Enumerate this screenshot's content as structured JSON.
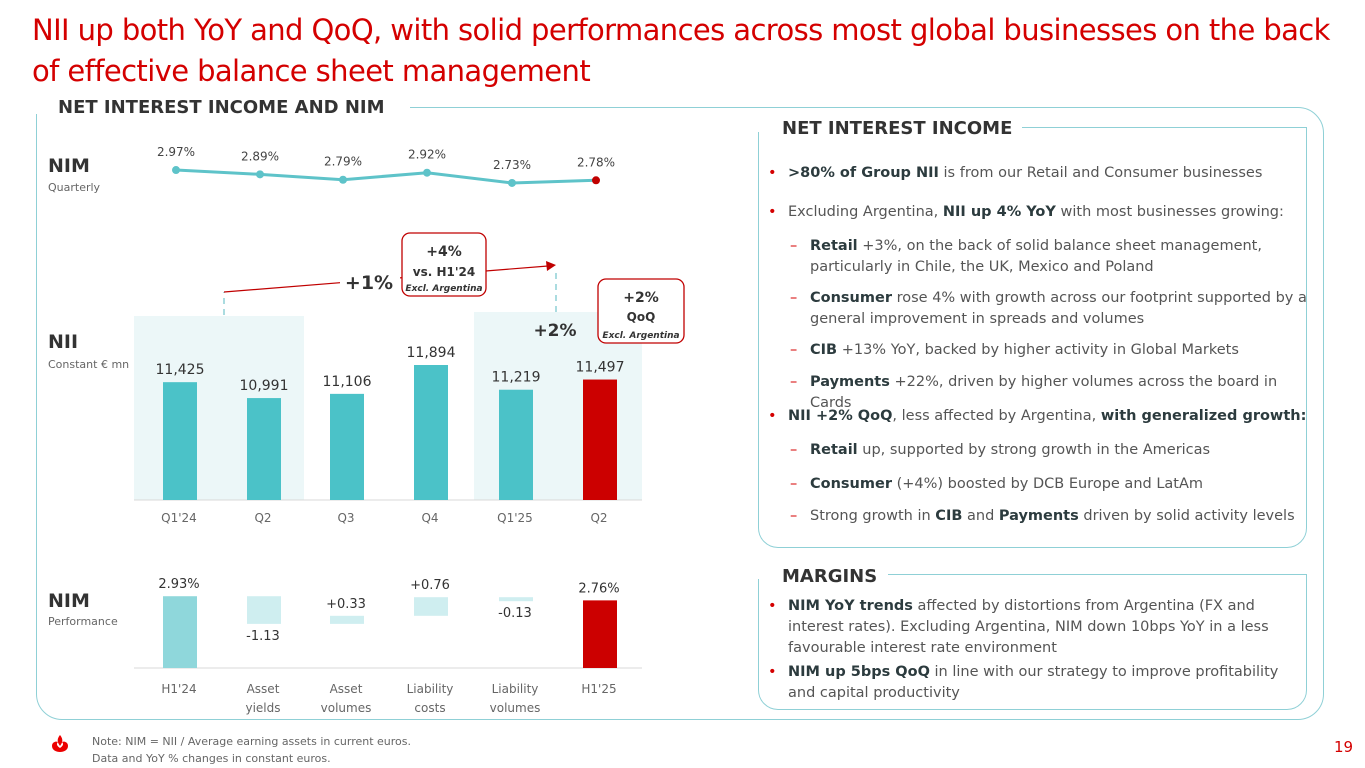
{
  "title": "NII up both YoY and QoQ, with solid performances across most global businesses on the back of effective balance sheet management",
  "section_main": "NET INTEREST INCOME AND NIM",
  "section_nii": "NET INTEREST INCOME",
  "section_margins": "MARGINS",
  "nim_label": "NIM",
  "nim_sub": "Quarterly",
  "nii_label": "NII",
  "nii_sub": "Constant € mn",
  "nim_perf_label": "NIM",
  "nim_perf_sub": "Performance",
  "callouts": {
    "yoy_big": "+1%",
    "yoy_box_pct": "+4%",
    "yoy_box_line2": "vs. H1'24",
    "yoy_box_line3": "Excl. Argentina",
    "qoq_big": "+2%",
    "qoq_box_pct": "+2%",
    "qoq_box_line2": "QoQ",
    "qoq_box_line3": "Excl. Argentina"
  },
  "chart_data": [
    {
      "type": "line",
      "categories": [
        "Q1'24",
        "Q2",
        "Q3",
        "Q4",
        "Q1'25",
        "Q2"
      ],
      "values": [
        2.97,
        2.89,
        2.79,
        2.92,
        2.73,
        2.78
      ],
      "labels": [
        "2.97%",
        "2.89%",
        "2.79%",
        "2.92%",
        "2.73%",
        "2.78%"
      ],
      "colors": {
        "line": "#5ec3c9",
        "last_point": "#c00000"
      }
    },
    {
      "type": "bar",
      "categories": [
        "Q1'24",
        "Q2",
        "Q3",
        "Q4",
        "Q1'25",
        "Q2"
      ],
      "values": [
        11425,
        10991,
        11106,
        11894,
        11219,
        11497
      ],
      "labels": [
        "11,425",
        "10,991",
        "11,106",
        "11,894",
        "11,219",
        "11,497"
      ],
      "colors": {
        "bar": "#4bc2c8",
        "last_bar": "#cc0000",
        "highlight_bg": "#ecf7f8"
      }
    },
    {
      "type": "bar",
      "subtype": "waterfall",
      "categories": [
        "H1'24",
        "Asset yields",
        "Asset volumes",
        "Liability costs",
        "Liability volumes",
        "H1'25"
      ],
      "category_lines": [
        [
          "H1'24"
        ],
        [
          "Asset",
          "yields"
        ],
        [
          "Asset",
          "volumes"
        ],
        [
          "Liability",
          "costs"
        ],
        [
          "Liability",
          "volumes"
        ],
        [
          "H1'25"
        ]
      ],
      "values": [
        2.93,
        -1.13,
        0.33,
        0.76,
        -0.13,
        2.76
      ],
      "labels": [
        "2.93%",
        "-1.13",
        "+0.33",
        "+0.76",
        "-0.13",
        "2.76%"
      ],
      "colors": {
        "total": "#8fd7db",
        "delta": "#cfeef0",
        "last_bar": "#cc0000"
      }
    }
  ],
  "nii_bullets": [
    {
      "level": 1,
      "parts": [
        [
          "b",
          ">80% of Group NII"
        ],
        [
          "t",
          " is from our Retail and Consumer businesses"
        ]
      ]
    },
    {
      "level": 1,
      "parts": [
        [
          "t",
          "Excluding Argentina, "
        ],
        [
          "b",
          "NII up 4% YoY"
        ],
        [
          "t",
          " with most businesses growing:"
        ]
      ]
    },
    {
      "level": 2,
      "parts": [
        [
          "b",
          "Retail"
        ],
        [
          "t",
          " +3%, on the back of solid balance sheet management, particularly in Chile, the UK, Mexico and Poland"
        ]
      ]
    },
    {
      "level": 2,
      "parts": [
        [
          "b",
          "Consumer"
        ],
        [
          "t",
          " rose 4% with growth across our footprint supported by a general improvement in spreads and volumes"
        ]
      ]
    },
    {
      "level": 2,
      "parts": [
        [
          "b",
          "CIB"
        ],
        [
          "t",
          " +13% YoY, backed by higher activity in Global Markets"
        ]
      ]
    },
    {
      "level": 2,
      "parts": [
        [
          "b",
          "Payments"
        ],
        [
          "t",
          " +22%, driven by higher volumes across the board in Cards"
        ]
      ]
    },
    {
      "level": 1,
      "parts": [
        [
          "b",
          "NII +2% QoQ"
        ],
        [
          "t",
          ", less affected by Argentina, "
        ],
        [
          "b",
          "with generalized growth:"
        ]
      ]
    },
    {
      "level": 2,
      "parts": [
        [
          "b",
          "Retail"
        ],
        [
          "t",
          " up, supported by strong growth in the Americas"
        ]
      ]
    },
    {
      "level": 2,
      "parts": [
        [
          "b",
          "Consumer"
        ],
        [
          "t",
          " (+4%) boosted by DCB Europe and LatAm"
        ]
      ]
    },
    {
      "level": 2,
      "parts": [
        [
          "t",
          "Strong growth in "
        ],
        [
          "b",
          "CIB"
        ],
        [
          "t",
          " and "
        ],
        [
          "b",
          "Payments"
        ],
        [
          "t",
          " driven by solid activity levels"
        ]
      ]
    }
  ],
  "margin_bullets": [
    {
      "level": 1,
      "parts": [
        [
          "b",
          "NIM YoY trends"
        ],
        [
          "t",
          " affected by distortions from Argentina (FX and interest rates). Excluding Argentina, NIM down 10bps YoY in a less favourable interest rate environment"
        ]
      ]
    },
    {
      "level": 1,
      "parts": [
        [
          "b",
          "NIM up 5bps QoQ"
        ],
        [
          "t",
          " in line with our strategy to improve profitability and capital productivity"
        ]
      ]
    }
  ],
  "note_line1": "Note: NIM = NII / Average earning assets in current euros.",
  "note_line2": "Data and YoY % changes in constant euros.",
  "page_number": "19",
  "brand_color": "#ec0000"
}
